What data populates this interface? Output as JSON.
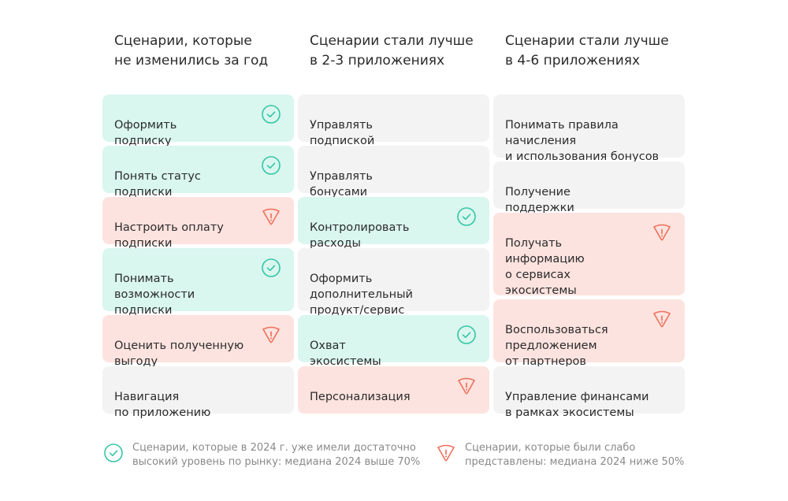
{
  "columns": [
    {
      "title": "Сценарии, которые\nне изменились за год",
      "cards": [
        {
          "text": "Оформить\nподписку",
          "status": "good"
        },
        {
          "text": "Понять статус\nподписки",
          "status": "good"
        },
        {
          "text": "Настроить оплату\nподписки",
          "status": "weak"
        },
        {
          "text": "Понимать\nвозможности\nподписки",
          "status": "good"
        },
        {
          "text": "Оценить полученную\nвыгоду",
          "status": "weak"
        },
        {
          "text": "Навигация\nпо приложению",
          "status": "none"
        }
      ]
    },
    {
      "title": "Сценарии стали лучше\nв 2-3 приложениях",
      "cards": [
        {
          "text": "Управлять\nподпиской",
          "status": "none"
        },
        {
          "text": "Управлять\nбонусами",
          "status": "none"
        },
        {
          "text": "Контролировать\nрасходы",
          "status": "good"
        },
        {
          "text": "Оформить\nдополнительный\nпродукт/сервис",
          "status": "none"
        },
        {
          "text": "Охват\nэкосистемы",
          "status": "good"
        },
        {
          "text": "Персонализация",
          "status": "weak"
        }
      ]
    },
    {
      "title": "Сценарии стали лучше\nв 4-6 приложениях",
      "cards": [
        {
          "text": "Понимать правила\nначисления\nи использования бонусов",
          "status": "none"
        },
        {
          "text": "Получение\nподдержки",
          "status": "none"
        },
        {
          "text": "Получать\nинформацию\nо сервисах\nэкосистемы",
          "status": "weak"
        },
        {
          "text": "Воспользоваться\nпредложением\nот партнеров",
          "status": "weak"
        },
        {
          "text": "Управление финансами\nв рамках экосистемы",
          "status": "none"
        }
      ]
    }
  ],
  "legend": {
    "good": "Сценарии, которые в 2024 г. уже имели достаточно\nвысокий уровень по рынку: медиана 2024 выше 70%",
    "weak": "Сценарии, которые были слабо\nпредставлены: медиана 2024 ниже 50%"
  },
  "icons": {
    "good": "check-circle-icon",
    "weak": "warning-triangle-icon"
  },
  "colors": {
    "good_bg": "#d9f6ef",
    "weak_bg": "#fde3df",
    "neutral_bg": "#f3f3f3",
    "good_icon": "#34c6a4",
    "weak_icon": "#f0705a"
  }
}
